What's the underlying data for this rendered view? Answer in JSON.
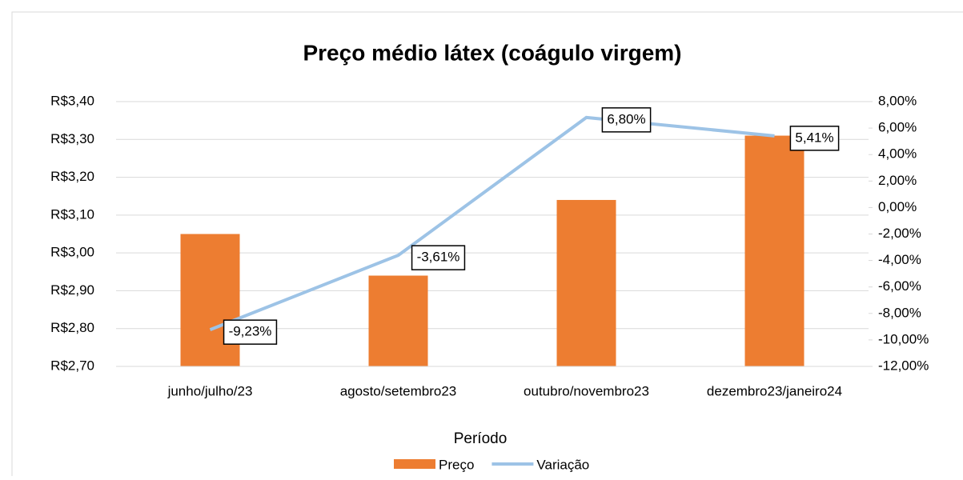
{
  "chart_data": {
    "type": "bar-line",
    "title": "Preço médio látex (coágulo virgem)",
    "x_label": "Período",
    "categories": [
      "junho/julho/23",
      "agosto/setembro23",
      "outubro/novembro23",
      "dezembro23/janeiro24"
    ],
    "series": [
      {
        "name": "Preço",
        "type": "bar",
        "color": "#ed7d31",
        "values": [
          3.05,
          2.94,
          3.14,
          3.31
        ]
      },
      {
        "name": "Variação",
        "type": "line",
        "axis": "y2",
        "color": "#9dc3e6",
        "values": [
          -9.23,
          -3.61,
          6.8,
          5.41
        ],
        "value_labels": [
          "-9,23%",
          "-3,61%",
          "6,80%",
          "5,41%"
        ]
      }
    ],
    "ylim": [
      2.7,
      3.4
    ],
    "yticks": [
      {
        "value": 2.7,
        "label": "R$2,70"
      },
      {
        "value": 2.8,
        "label": "R$2,80"
      },
      {
        "value": 2.9,
        "label": "R$2,90"
      },
      {
        "value": 3.0,
        "label": "R$3,00"
      },
      {
        "value": 3.1,
        "label": "R$3,10"
      },
      {
        "value": 3.2,
        "label": "R$3,20"
      },
      {
        "value": 3.3,
        "label": "R$3,30"
      },
      {
        "value": 3.4,
        "label": "R$3,40"
      }
    ],
    "y2lim": [
      -12,
      8
    ],
    "y2ticks": [
      {
        "value": -12,
        "label": "-12,00%"
      },
      {
        "value": -10,
        "label": "-10,00%"
      },
      {
        "value": -8,
        "label": "-8,00%"
      },
      {
        "value": -6,
        "label": "-6,00%"
      },
      {
        "value": -4,
        "label": "-4,00%"
      },
      {
        "value": -2,
        "label": "-2,00%"
      },
      {
        "value": 0,
        "label": "0,00%"
      },
      {
        "value": 2,
        "label": "2,00%"
      },
      {
        "value": 4,
        "label": "4,00%"
      },
      {
        "value": 6,
        "label": "6,00%"
      },
      {
        "value": 8,
        "label": "8,00%"
      }
    ],
    "grid": true,
    "legend": "bottom"
  }
}
